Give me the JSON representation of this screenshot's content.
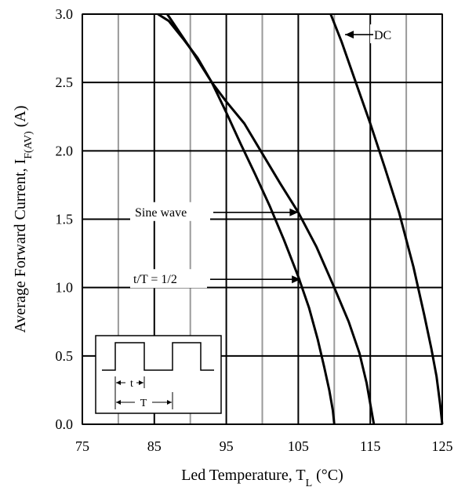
{
  "chart_data": {
    "type": "line",
    "xlabel_main": "Led Temperature, T",
    "xlabel_sub": "L",
    "xlabel_unit": " (°C)",
    "ylabel_main": "Average Forward Current, I",
    "ylabel_sub": "F(AV)",
    "ylabel_unit": " (A)",
    "xlim": [
      75,
      125
    ],
    "ylim": [
      0,
      3.0
    ],
    "x_ticks": [
      75,
      85,
      95,
      105,
      115,
      125
    ],
    "x_tick_labels": [
      "75",
      "85",
      "95",
      "105",
      "115",
      "125"
    ],
    "y_ticks": [
      0,
      0.5,
      1.0,
      1.5,
      2.0,
      2.5,
      3.0
    ],
    "y_tick_labels": [
      "0.0",
      "0.5",
      "1.0",
      "1.5",
      "2.0",
      "2.5",
      "3.0"
    ],
    "grid": true,
    "series": [
      {
        "name": "DC",
        "x": [
          109.5,
          111,
          113,
          115,
          117,
          119,
          121,
          122.5,
          123.5,
          124.2,
          124.7,
          125
        ],
        "y": [
          3.0,
          2.8,
          2.5,
          2.2,
          1.88,
          1.55,
          1.15,
          0.8,
          0.55,
          0.35,
          0.15,
          0
        ]
      },
      {
        "name": "Sine wave",
        "x": [
          86.8,
          90,
          93,
          95,
          97.5,
          100,
          102.5,
          105,
          107.5,
          110,
          112,
          113.5,
          114.5,
          115.1,
          115.5
        ],
        "y": [
          3.0,
          2.75,
          2.5,
          2.36,
          2.2,
          1.98,
          1.76,
          1.55,
          1.3,
          1.0,
          0.75,
          0.52,
          0.3,
          0.12,
          0
        ]
      },
      {
        "name": "t/T = 1/2",
        "x": [
          85.5,
          87,
          89,
          91,
          93,
          95,
          97,
          99,
          101,
          103,
          105,
          106.5,
          107.7,
          108.6,
          109.3,
          109.8,
          110
        ],
        "y": [
          3.0,
          2.95,
          2.82,
          2.68,
          2.5,
          2.28,
          2.05,
          1.83,
          1.6,
          1.35,
          1.08,
          0.85,
          0.62,
          0.42,
          0.25,
          0.1,
          0
        ]
      }
    ],
    "annotations": [
      {
        "text": "DC",
        "arrow_to": [
          111.5,
          2.85
        ]
      },
      {
        "text": "Sine wave",
        "arrow_to": [
          105.0,
          1.55
        ]
      },
      {
        "text": "t/T = 1/2",
        "arrow_to": [
          105.3,
          1.06
        ]
      }
    ],
    "inset": {
      "t_label": "t",
      "T_label": "T"
    }
  }
}
